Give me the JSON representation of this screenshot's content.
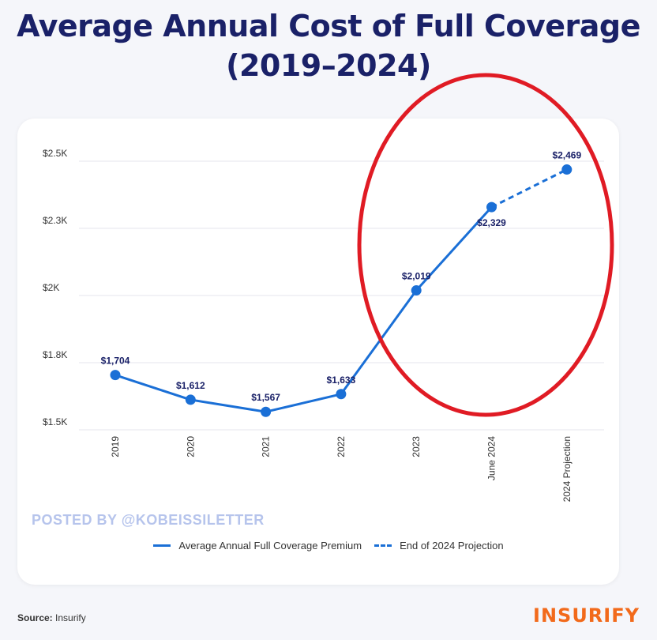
{
  "header": {
    "title_line1": "Average Annual Cost of Full Coverage",
    "title_line2": "(2019–2024)"
  },
  "chart_data": {
    "type": "line",
    "categories": [
      "2019",
      "2020",
      "2021",
      "2022",
      "2023",
      "June 2024",
      "2024 Projection"
    ],
    "series": [
      {
        "name": "Average Annual Full Coverage Premium",
        "style": "solid",
        "values": [
          1704,
          1612,
          1567,
          1633,
          2019,
          2329,
          null
        ],
        "labels": [
          "$1,704",
          "$1,612",
          "$1,567",
          "$1,633",
          "$2,019",
          "$2,329",
          ""
        ]
      },
      {
        "name": "End of 2024 Projection",
        "style": "dashed",
        "values": [
          null,
          null,
          null,
          null,
          null,
          2329,
          2469
        ],
        "labels": [
          "",
          "",
          "",
          "",
          "",
          "",
          "$2,469"
        ]
      }
    ],
    "y_ticks": [
      {
        "value": 1500,
        "label": "$1.5K"
      },
      {
        "value": 1750,
        "label": "$1.8K"
      },
      {
        "value": 2000,
        "label": "$2K"
      },
      {
        "value": 2250,
        "label": "$2.3K"
      },
      {
        "value": 2500,
        "label": "$2.5K"
      }
    ],
    "ylim": [
      1500,
      2500
    ],
    "grid": true,
    "legend_position": "bottom",
    "annotation": "red ellipse highlighting 2023 to 2024 Projection",
    "colors": {
      "line": "#1a6fd6",
      "highlight": "#e01b24",
      "grid": "#e4e6ec",
      "label": "#1a2168"
    }
  },
  "watermark": "POSTED BY @KOBEISSILETTER",
  "footer": {
    "source_label": "Source:",
    "source_value": "Insurify",
    "logo": "INSURIFY"
  }
}
